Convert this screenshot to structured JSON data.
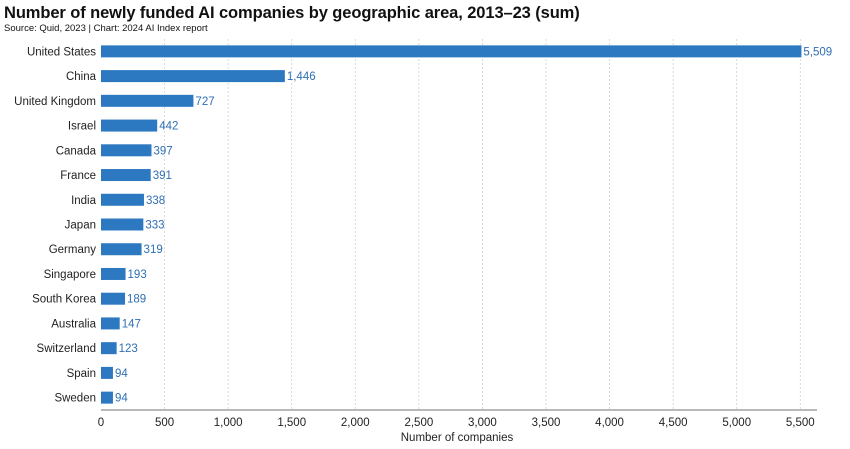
{
  "title": "Number of newly funded AI companies by geographic area, 2013–23 (sum)",
  "source": "Source: Quid, 2023 | Chart: 2024 AI Index report",
  "chart_data": {
    "type": "bar",
    "orientation": "horizontal",
    "categories": [
      "United States",
      "China",
      "United Kingdom",
      "Israel",
      "Canada",
      "France",
      "India",
      "Japan",
      "Germany",
      "Singapore",
      "South Korea",
      "Australia",
      "Switzerland",
      "Spain",
      "Sweden"
    ],
    "values": [
      5509,
      1446,
      727,
      442,
      397,
      391,
      338,
      333,
      319,
      193,
      189,
      147,
      123,
      94,
      94
    ],
    "value_labels": [
      "5,509",
      "1,446",
      "727",
      "442",
      "397",
      "391",
      "338",
      "333",
      "319",
      "193",
      "189",
      "147",
      "123",
      "94",
      "94"
    ],
    "xlabel": "Number of companies",
    "xlim": [
      0,
      5600
    ],
    "x_ticks": [
      0,
      500,
      1000,
      1500,
      2000,
      2500,
      3000,
      3500,
      4000,
      4500,
      5000,
      5500
    ],
    "x_tick_labels": [
      "0",
      "500",
      "1,000",
      "1,500",
      "2,000",
      "2,500",
      "3,000",
      "3,500",
      "4,000",
      "4,500",
      "5,000",
      "5,500"
    ],
    "grid": "vertical dashed",
    "bar_color": "#2c79c2",
    "label_color": "#2f6fb3"
  }
}
